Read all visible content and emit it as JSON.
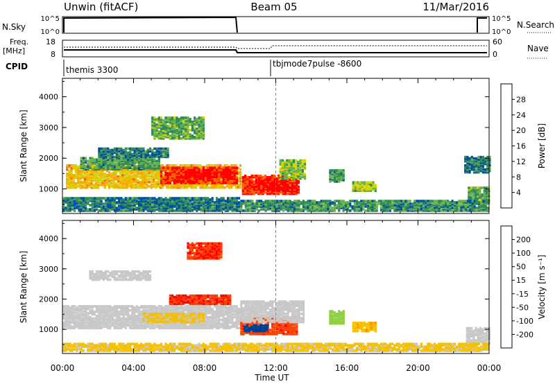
{
  "header": {
    "station": "Unwin (fitACF)",
    "beam": "Beam 05",
    "date": "11/Mar/2016"
  },
  "summary_panels": {
    "nsky_label": "N.Sky",
    "nsky_ticks": [
      "10^5",
      "10^0"
    ],
    "nsearch_label": "N.Search",
    "nsearch_ticks": [
      "10^5",
      "10^0"
    ],
    "freq_label": "Freq.",
    "freq_unit": "[MHz]",
    "freq_ticks": [
      "18",
      "8"
    ],
    "nave_label": "Nave",
    "nave_ticks": [
      "60",
      "0"
    ],
    "cpid_label": "CPID",
    "cpid_segments": [
      {
        "name": "themis 3300",
        "start_ut": 0,
        "end_ut": 12
      },
      {
        "name": "tbjmode7pulse -8600",
        "start_ut": 12,
        "end_ut": 24
      }
    ]
  },
  "x_axis": {
    "label": "Time UT",
    "ticks": [
      "00:00",
      "04:00",
      "08:00",
      "12:00",
      "16:00",
      "20:00",
      "00:00"
    ],
    "range_hours": [
      0,
      24
    ]
  },
  "chart_data": [
    {
      "type": "heatmap",
      "name": "power",
      "ylabel": "Slant Range [km]",
      "y_ticks": [
        1000,
        2000,
        3000,
        4000
      ],
      "ylim": [
        200,
        4600
      ],
      "xlim": [
        0,
        24
      ],
      "colorbar": {
        "label": "Power [dB]",
        "ticks": [
          "28",
          "24",
          "20",
          "16",
          "12",
          "8",
          "4"
        ],
        "range": [
          0,
          30
        ],
        "colors": [
          "#0000ff",
          "#0050a0",
          "#2e8b57",
          "#6ab04c",
          "#d4d400",
          "#ffa500",
          "#ff6000",
          "#ff0000"
        ]
      },
      "regions": [
        {
          "t": [
            0.2,
            10.0
          ],
          "r": [
            1000,
            1750
          ],
          "v": 19
        },
        {
          "t": [
            5.5,
            9.8
          ],
          "r": [
            1150,
            1650
          ],
          "v": 27
        },
        {
          "t": [
            7.0,
            9.6
          ],
          "r": [
            1300,
            1600
          ],
          "v": 29
        },
        {
          "t": [
            10.1,
            13.3
          ],
          "r": [
            800,
            1400
          ],
          "v": 27
        },
        {
          "t": [
            11.0,
            13.2
          ],
          "r": [
            900,
            1300
          ],
          "v": 29
        },
        {
          "t": [
            12.2,
            13.6
          ],
          "r": [
            1300,
            1900
          ],
          "v": 14
        },
        {
          "t": [
            1.0,
            5.5
          ],
          "r": [
            1600,
            2000
          ],
          "v": 11
        },
        {
          "t": [
            5.0,
            8.0
          ],
          "r": [
            2600,
            3300
          ],
          "v": 12
        },
        {
          "t": [
            2.0,
            6.0
          ],
          "r": [
            2000,
            2300
          ],
          "v": 8
        },
        {
          "t": [
            15.0,
            15.8
          ],
          "r": [
            1200,
            1600
          ],
          "v": 10
        },
        {
          "t": [
            16.3,
            17.6
          ],
          "r": [
            900,
            1200
          ],
          "v": 15
        },
        {
          "t": [
            22.6,
            24.0
          ],
          "r": [
            1500,
            2000
          ],
          "v": 8
        },
        {
          "t": [
            22.8,
            24.0
          ],
          "r": [
            500,
            1000
          ],
          "v": 12
        },
        {
          "t": [
            0.0,
            10.0
          ],
          "r": [
            250,
            700
          ],
          "v": 8
        },
        {
          "t": [
            10.0,
            24.0
          ],
          "r": [
            250,
            600
          ],
          "v": 10
        }
      ]
    },
    {
      "type": "heatmap",
      "name": "velocity",
      "ylabel": "Slant Range [km]",
      "y_ticks": [
        1000,
        2000,
        3000,
        4000
      ],
      "ylim": [
        200,
        4600
      ],
      "xlim": [
        0,
        24
      ],
      "colorbar": {
        "label": "Velocity [m s⁻¹]",
        "ticks": [
          "200",
          "100",
          "50",
          "15",
          "-15",
          "-50",
          "-100",
          "-200"
        ],
        "range": [
          -250,
          250
        ],
        "colors": [
          "#ff0000",
          "#ff4000",
          "#ff8c00",
          "#f5c000",
          "#c8c8c8",
          "#8fd03f",
          "#2e8b57",
          "#004090",
          "#0000cd"
        ]
      },
      "regions": [
        {
          "t": [
            0.0,
            10.0
          ],
          "r": [
            1000,
            1750
          ],
          "v": 0
        },
        {
          "t": [
            4.5,
            8.0
          ],
          "r": [
            1200,
            1500
          ],
          "v": -40
        },
        {
          "t": [
            10.0,
            13.2
          ],
          "r": [
            800,
            1350
          ],
          "v": -180
        },
        {
          "t": [
            10.2,
            11.5
          ],
          "r": [
            900,
            1100
          ],
          "v": 160
        },
        {
          "t": [
            10.0,
            13.6
          ],
          "r": [
            1200,
            1900
          ],
          "v": 0
        },
        {
          "t": [
            7.0,
            9.0
          ],
          "r": [
            3300,
            3800
          ],
          "v": -190
        },
        {
          "t": [
            6.0,
            9.5
          ],
          "r": [
            1800,
            2100
          ],
          "v": -190
        },
        {
          "t": [
            1.5,
            5.0
          ],
          "r": [
            2600,
            2900
          ],
          "v": 0
        },
        {
          "t": [
            15.0,
            15.8
          ],
          "r": [
            1150,
            1600
          ],
          "v": 60
        },
        {
          "t": [
            16.3,
            17.6
          ],
          "r": [
            900,
            1200
          ],
          "v": -70
        },
        {
          "t": [
            22.7,
            24.0
          ],
          "r": [
            500,
            1000
          ],
          "v": 0
        },
        {
          "t": [
            0.0,
            24.0
          ],
          "r": [
            250,
            500
          ],
          "v": -40
        }
      ]
    }
  ]
}
